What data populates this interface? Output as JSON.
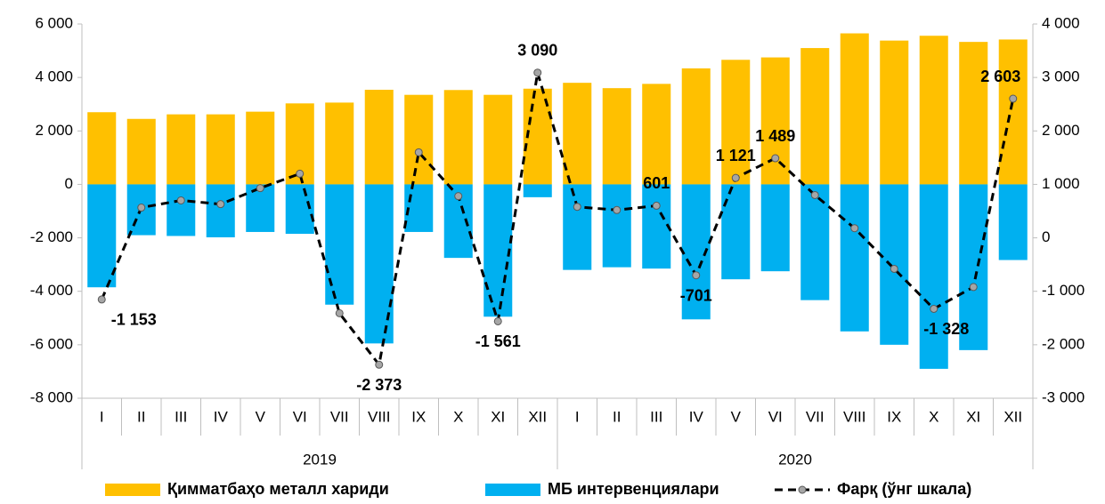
{
  "chart_data": {
    "type": "bar_line",
    "categories": [
      "I",
      "II",
      "III",
      "IV",
      "V",
      "VI",
      "VII",
      "VIII",
      "IX",
      "X",
      "XI",
      "XII",
      "I",
      "II",
      "III",
      "IV",
      "V",
      "VI",
      "VII",
      "VIII",
      "IX",
      "X",
      "XI",
      "XII"
    ],
    "groups": [
      "2019",
      "2020"
    ],
    "series": [
      {
        "name": "Қимматбаҳо металл хариди",
        "type": "bar",
        "color": "#FFC000",
        "values": [
          2700,
          2450,
          2620,
          2620,
          2720,
          3030,
          3060,
          3540,
          3350,
          3530,
          3350,
          3580,
          3800,
          3600,
          3760,
          4340,
          4660,
          4750,
          5100,
          5650,
          5380,
          5560,
          5330,
          5420
        ]
      },
      {
        "name": "МБ интервенциялари",
        "type": "bar",
        "color": "#00B0F0",
        "values": [
          -3850,
          -1900,
          -1930,
          -1980,
          -1780,
          -1850,
          -4500,
          -5950,
          -1780,
          -2750,
          -4950,
          -480,
          -3200,
          -3100,
          -3150,
          -5050,
          -3550,
          -3250,
          -4330,
          -5500,
          -6000,
          -6900,
          -6200,
          -2830
        ]
      },
      {
        "name": "Фарқ (ўнг шкала)",
        "type": "line",
        "axis": "y2",
        "color": "#000000",
        "marker_color": "#A6A6A6",
        "values": [
          -1153,
          566,
          700,
          630,
          930,
          1200,
          -1410,
          -2373,
          1600,
          780,
          -1561,
          3090,
          580,
          520,
          601,
          -701,
          1121,
          1489,
          800,
          180,
          -580,
          -1328,
          -920,
          2603
        ],
        "value_labels": [
          "-1 153",
          null,
          null,
          null,
          null,
          null,
          null,
          "-2 373",
          null,
          null,
          "-1 561",
          "3 090",
          null,
          null,
          "601",
          "-701",
          "1 121",
          "1 489",
          null,
          null,
          null,
          "-1 328",
          null,
          "2 603"
        ]
      }
    ],
    "ylim": [
      -8000,
      6000
    ],
    "yticks": [
      {
        "value": -8000,
        "label": "-8 000"
      },
      {
        "value": -6000,
        "label": "-6 000"
      },
      {
        "value": -4000,
        "label": "-4 000"
      },
      {
        "value": -2000,
        "label": "-2 000"
      },
      0,
      {
        "value": 2000,
        "label": "2 000"
      },
      {
        "value": 4000,
        "label": "4 000"
      },
      {
        "value": 6000,
        "label": "6 000"
      }
    ],
    "y2lim": [
      -3000,
      4000
    ],
    "y2ticks": [
      {
        "value": -3000,
        "label": "-3 000"
      },
      {
        "value": -2000,
        "label": "-2 000"
      },
      {
        "value": -1000,
        "label": "-1 000"
      },
      0,
      {
        "value": 1000,
        "label": "1 000"
      },
      {
        "value": 2000,
        "label": "2 000"
      },
      {
        "value": 3000,
        "label": "3 000"
      },
      {
        "value": 4000,
        "label": "4 000"
      }
    ],
    "legend": "bottom"
  }
}
